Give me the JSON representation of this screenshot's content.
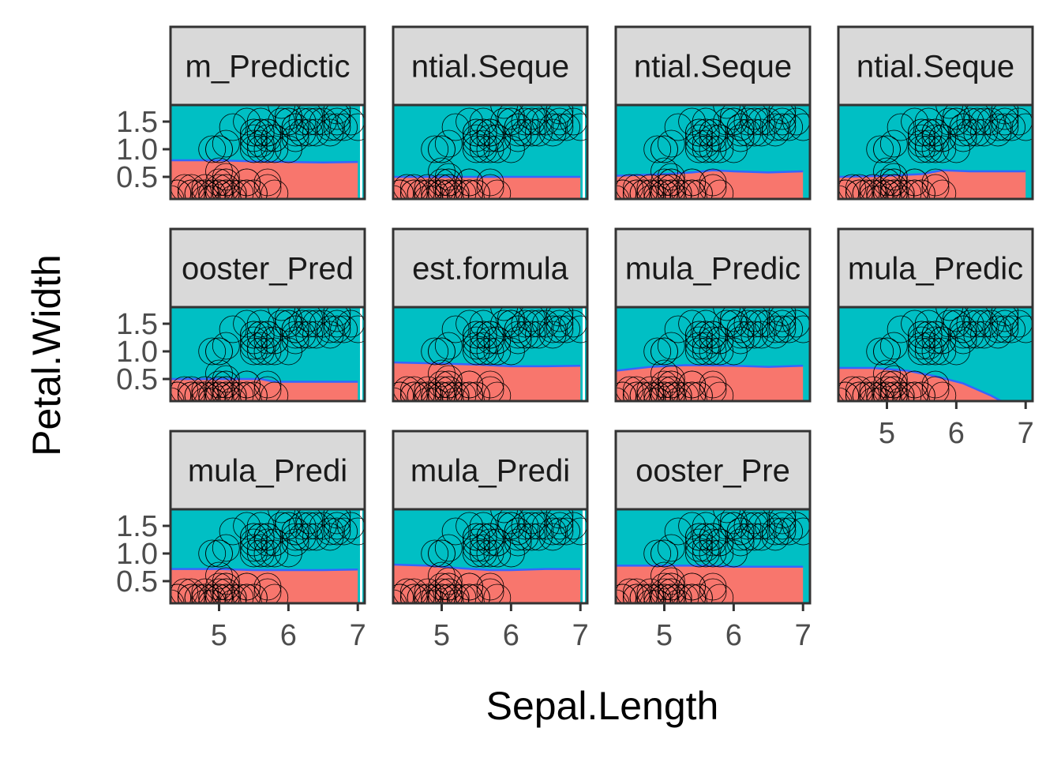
{
  "chart_data": {
    "type": "scatter",
    "title": "",
    "xlabel": "Sepal.Length",
    "ylabel": "Petal.Width",
    "xlim": [
      4.3,
      7.1
    ],
    "ylim": [
      0.1,
      1.8
    ],
    "x_ticks": [
      5,
      6,
      7
    ],
    "y_ticks": [
      0.5,
      1.0,
      1.5
    ],
    "x_tick_labels": [
      "5",
      "6",
      "7"
    ],
    "y_tick_labels": [
      "0.5",
      "1.0",
      "1.5"
    ],
    "grid": false,
    "legend": "none",
    "layout": {
      "rows": 3,
      "cols": 4
    },
    "colors": {
      "class_low": "#F8766D",
      "class_high": "#00BFC4",
      "boundary": "#3366FF",
      "strip_fill": "#D9D9D9",
      "panel_border": "#333333",
      "point_stroke": "#000000"
    },
    "panels": [
      {
        "label": "m_Predictic",
        "boundary": [
          [
            4.3,
            0.8
          ],
          [
            5.0,
            0.8
          ],
          [
            5.5,
            0.78
          ],
          [
            6.0,
            0.77
          ],
          [
            6.5,
            0.76
          ],
          [
            7.0,
            0.77
          ]
        ],
        "right_gap": true
      },
      {
        "label": "ntial.Seque",
        "boundary": [
          [
            4.3,
            0.5
          ],
          [
            5.0,
            0.5
          ],
          [
            5.5,
            0.5
          ],
          [
            6.0,
            0.5
          ],
          [
            6.5,
            0.5
          ],
          [
            7.0,
            0.5
          ]
        ],
        "right_gap": true
      },
      {
        "label": "ntial.Seque",
        "boundary": [
          [
            4.3,
            0.52
          ],
          [
            5.0,
            0.55
          ],
          [
            5.4,
            0.58
          ],
          [
            5.7,
            0.62
          ],
          [
            6.0,
            0.6
          ],
          [
            6.5,
            0.58
          ],
          [
            7.0,
            0.6
          ]
        ],
        "right_gap": false
      },
      {
        "label": "ntial.Seque",
        "boundary": [
          [
            4.3,
            0.5
          ],
          [
            5.0,
            0.52
          ],
          [
            5.5,
            0.55
          ],
          [
            5.8,
            0.62
          ],
          [
            6.2,
            0.6
          ],
          [
            6.6,
            0.6
          ],
          [
            7.0,
            0.6
          ]
        ],
        "right_gap": false
      },
      {
        "label": "ooster_Pred",
        "boundary": [
          [
            4.3,
            0.5
          ],
          [
            5.0,
            0.5
          ],
          [
            5.6,
            0.5
          ],
          [
            5.8,
            0.45
          ],
          [
            6.5,
            0.45
          ],
          [
            7.0,
            0.45
          ]
        ],
        "right_gap": true
      },
      {
        "label": "est.formula",
        "boundary": [
          [
            4.3,
            0.8
          ],
          [
            5.0,
            0.78
          ],
          [
            5.5,
            0.76
          ],
          [
            6.0,
            0.73
          ],
          [
            6.5,
            0.73
          ],
          [
            7.0,
            0.74
          ]
        ],
        "right_gap": true
      },
      {
        "label": "mula_Predic",
        "boundary": [
          [
            4.3,
            0.65
          ],
          [
            4.8,
            0.72
          ],
          [
            5.3,
            0.75
          ],
          [
            6.0,
            0.74
          ],
          [
            6.5,
            0.72
          ],
          [
            7.0,
            0.74
          ]
        ],
        "right_gap": false
      },
      {
        "label": "mula_Predic",
        "boundary": [
          [
            4.3,
            0.7
          ],
          [
            4.8,
            0.7
          ],
          [
            5.3,
            0.65
          ],
          [
            5.7,
            0.55
          ],
          [
            6.1,
            0.42
          ],
          [
            6.5,
            0.2
          ],
          [
            6.65,
            0.1
          ]
        ],
        "right_gap": false
      },
      {
        "label": "mula_Predi",
        "boundary": [
          [
            4.3,
            0.72
          ],
          [
            5.0,
            0.72
          ],
          [
            5.5,
            0.7
          ],
          [
            6.0,
            0.7
          ],
          [
            6.5,
            0.7
          ],
          [
            7.0,
            0.71
          ]
        ],
        "right_gap": true
      },
      {
        "label": "mula_Predi",
        "boundary": [
          [
            4.3,
            0.8
          ],
          [
            4.8,
            0.78
          ],
          [
            5.3,
            0.73
          ],
          [
            5.7,
            0.7
          ],
          [
            6.0,
            0.7
          ],
          [
            6.5,
            0.72
          ],
          [
            7.0,
            0.72
          ]
        ],
        "right_gap": true
      },
      {
        "label": "ooster_Pre",
        "boundary": [
          [
            4.3,
            0.78
          ],
          [
            5.0,
            0.78
          ],
          [
            5.6,
            0.78
          ],
          [
            6.0,
            0.76
          ],
          [
            6.5,
            0.76
          ],
          [
            7.0,
            0.76
          ]
        ],
        "right_gap": false
      }
    ],
    "points": [
      [
        4.3,
        0.1
      ],
      [
        4.4,
        0.2
      ],
      [
        4.4,
        0.2
      ],
      [
        4.4,
        0.2
      ],
      [
        4.5,
        0.3
      ],
      [
        4.6,
        0.2
      ],
      [
        4.6,
        0.2
      ],
      [
        4.6,
        0.3
      ],
      [
        4.6,
        0.2
      ],
      [
        4.7,
        0.2
      ],
      [
        4.7,
        0.2
      ],
      [
        4.8,
        0.2
      ],
      [
        4.8,
        0.2
      ],
      [
        4.8,
        0.1
      ],
      [
        4.8,
        0.2
      ],
      [
        4.8,
        0.3
      ],
      [
        4.9,
        0.2
      ],
      [
        4.9,
        0.1
      ],
      [
        4.9,
        0.2
      ],
      [
        4.9,
        0.1
      ],
      [
        5.0,
        0.2
      ],
      [
        5.0,
        0.2
      ],
      [
        5.0,
        0.4
      ],
      [
        5.0,
        0.2
      ],
      [
        5.0,
        0.3
      ],
      [
        5.0,
        0.2
      ],
      [
        5.0,
        0.6
      ],
      [
        5.0,
        0.2
      ],
      [
        5.1,
        0.2
      ],
      [
        5.1,
        0.3
      ],
      [
        5.1,
        0.3
      ],
      [
        5.1,
        0.4
      ],
      [
        5.1,
        0.5
      ],
      [
        5.1,
        0.2
      ],
      [
        5.1,
        0.2
      ],
      [
        5.1,
        0.4
      ],
      [
        5.2,
        0.2
      ],
      [
        5.2,
        0.1
      ],
      [
        5.2,
        0.2
      ],
      [
        5.3,
        0.2
      ],
      [
        5.4,
        0.4
      ],
      [
        5.4,
        0.2
      ],
      [
        5.4,
        0.2
      ],
      [
        5.4,
        0.4
      ],
      [
        5.4,
        0.2
      ],
      [
        5.5,
        0.2
      ],
      [
        5.5,
        0.2
      ],
      [
        5.7,
        0.4
      ],
      [
        5.7,
        0.3
      ],
      [
        5.8,
        0.2
      ],
      [
        4.9,
        1.0
      ],
      [
        5.0,
        1.0
      ],
      [
        5.0,
        1.0
      ],
      [
        5.1,
        1.1
      ],
      [
        5.2,
        1.4
      ],
      [
        5.4,
        1.5
      ],
      [
        5.5,
        1.3
      ],
      [
        5.5,
        1.3
      ],
      [
        5.5,
        1.2
      ],
      [
        5.5,
        1.1
      ],
      [
        5.5,
        1.0
      ],
      [
        5.6,
        1.3
      ],
      [
        5.6,
        1.0
      ],
      [
        5.6,
        1.5
      ],
      [
        5.6,
        1.3
      ],
      [
        5.6,
        1.1
      ],
      [
        5.7,
        1.3
      ],
      [
        5.7,
        1.0
      ],
      [
        5.7,
        1.2
      ],
      [
        5.7,
        1.3
      ],
      [
        5.7,
        1.3
      ],
      [
        5.8,
        1.0
      ],
      [
        5.8,
        1.2
      ],
      [
        5.8,
        1.2
      ],
      [
        5.9,
        1.5
      ],
      [
        5.9,
        1.8
      ],
      [
        6.0,
        1.0
      ],
      [
        6.0,
        1.5
      ],
      [
        6.0,
        1.6
      ],
      [
        6.0,
        1.5
      ],
      [
        6.1,
        1.4
      ],
      [
        6.1,
        1.2
      ],
      [
        6.1,
        1.3
      ],
      [
        6.1,
        1.4
      ],
      [
        6.2,
        1.5
      ],
      [
        6.2,
        1.3
      ],
      [
        6.3,
        1.6
      ],
      [
        6.3,
        1.5
      ],
      [
        6.3,
        1.3
      ],
      [
        6.4,
        1.5
      ],
      [
        6.4,
        1.3
      ],
      [
        6.5,
        1.5
      ],
      [
        6.6,
        1.3
      ],
      [
        6.6,
        1.4
      ],
      [
        6.7,
        1.4
      ],
      [
        6.7,
        1.5
      ],
      [
        6.7,
        1.7
      ],
      [
        6.7,
        1.6
      ],
      [
        6.8,
        1.4
      ],
      [
        6.9,
        1.5
      ],
      [
        7.0,
        1.4
      ]
    ]
  }
}
